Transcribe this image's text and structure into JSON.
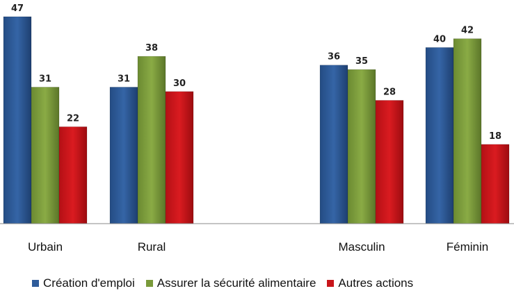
{
  "chart_data": {
    "type": "bar",
    "categories": [
      "Urbain",
      "Rural",
      "",
      "Masculin",
      "Féminin"
    ],
    "series": [
      {
        "name": "Création d'emploi",
        "color": "#2E5C9A",
        "values": [
          47,
          31,
          null,
          36,
          40
        ]
      },
      {
        "name": "Assurer la sécurité alimentaire",
        "color": "#7A9A3A",
        "values": [
          31,
          38,
          null,
          35,
          42
        ]
      },
      {
        "name": "Autres actions",
        "color": "#C8151A",
        "values": [
          22,
          30,
          null,
          28,
          18
        ]
      }
    ],
    "ylim": [
      0,
      47
    ],
    "grid": false,
    "legend_position": "bottom"
  }
}
